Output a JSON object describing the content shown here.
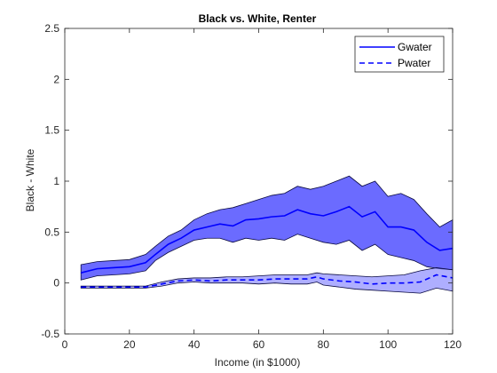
{
  "chart_data": {
    "type": "line",
    "title": "Black vs. White, Renter",
    "xlabel": "Income (in $1000)",
    "ylabel": "Black - White",
    "xlim": [
      0,
      120
    ],
    "ylim": [
      -0.5,
      2.5
    ],
    "xticks": [
      "0",
      "20",
      "40",
      "60",
      "80",
      "100",
      "120"
    ],
    "yticks": [
      "-0.5",
      "0",
      "0.5",
      "1",
      "1.5",
      "2",
      "2.5"
    ],
    "grid": false,
    "legend_position": "top-right",
    "colors": {
      "line": "#0000ff",
      "band": "#6b6bff",
      "band_edge": "#0a0a40",
      "axis": "#262626"
    },
    "series": [
      {
        "name": "Gwater",
        "style": "solid",
        "x": [
          5,
          10,
          15,
          20,
          25,
          28,
          32,
          36,
          40,
          44,
          48,
          52,
          56,
          60,
          64,
          68,
          72,
          76,
          80,
          84,
          88,
          92,
          96,
          100,
          104,
          108,
          112,
          116,
          120
        ],
        "y": [
          0.1,
          0.14,
          0.15,
          0.16,
          0.2,
          0.28,
          0.38,
          0.44,
          0.52,
          0.55,
          0.58,
          0.56,
          0.62,
          0.63,
          0.65,
          0.66,
          0.72,
          0.68,
          0.66,
          0.7,
          0.75,
          0.65,
          0.7,
          0.55,
          0.55,
          0.52,
          0.4,
          0.32,
          0.34
        ],
        "lower": [
          0.03,
          0.07,
          0.08,
          0.09,
          0.12,
          0.22,
          0.3,
          0.36,
          0.42,
          0.44,
          0.44,
          0.4,
          0.44,
          0.42,
          0.44,
          0.42,
          0.48,
          0.44,
          0.4,
          0.38,
          0.42,
          0.32,
          0.38,
          0.28,
          0.25,
          0.22,
          0.16,
          0.14,
          0.13
        ],
        "upper": [
          0.18,
          0.21,
          0.22,
          0.23,
          0.28,
          0.36,
          0.46,
          0.52,
          0.62,
          0.68,
          0.72,
          0.74,
          0.78,
          0.82,
          0.86,
          0.88,
          0.95,
          0.92,
          0.95,
          1.0,
          1.05,
          0.95,
          1.0,
          0.85,
          0.88,
          0.82,
          0.68,
          0.55,
          0.62
        ]
      },
      {
        "name": "Pwater",
        "style": "dashed",
        "x": [
          5,
          10,
          15,
          20,
          25,
          30,
          35,
          40,
          45,
          50,
          55,
          60,
          65,
          70,
          75,
          78,
          80,
          85,
          90,
          95,
          100,
          105,
          110,
          115,
          120
        ],
        "y": [
          -0.04,
          -0.04,
          -0.04,
          -0.04,
          -0.04,
          -0.01,
          0.02,
          0.03,
          0.02,
          0.03,
          0.03,
          0.03,
          0.04,
          0.04,
          0.04,
          0.06,
          0.04,
          0.02,
          0.01,
          -0.01,
          0.0,
          0.0,
          0.01,
          0.08,
          0.05
        ],
        "lower": [
          -0.05,
          -0.05,
          -0.05,
          -0.05,
          -0.05,
          -0.03,
          0.0,
          0.01,
          0.0,
          0.0,
          0.0,
          -0.01,
          0.0,
          -0.01,
          -0.01,
          0.01,
          -0.02,
          -0.04,
          -0.06,
          -0.07,
          -0.08,
          -0.09,
          -0.1,
          -0.05,
          -0.08
        ],
        "upper": [
          -0.03,
          -0.03,
          -0.03,
          -0.03,
          -0.03,
          0.01,
          0.04,
          0.05,
          0.05,
          0.06,
          0.06,
          0.07,
          0.08,
          0.08,
          0.08,
          0.1,
          0.09,
          0.08,
          0.07,
          0.06,
          0.07,
          0.08,
          0.12,
          0.15,
          0.13
        ]
      }
    ]
  }
}
